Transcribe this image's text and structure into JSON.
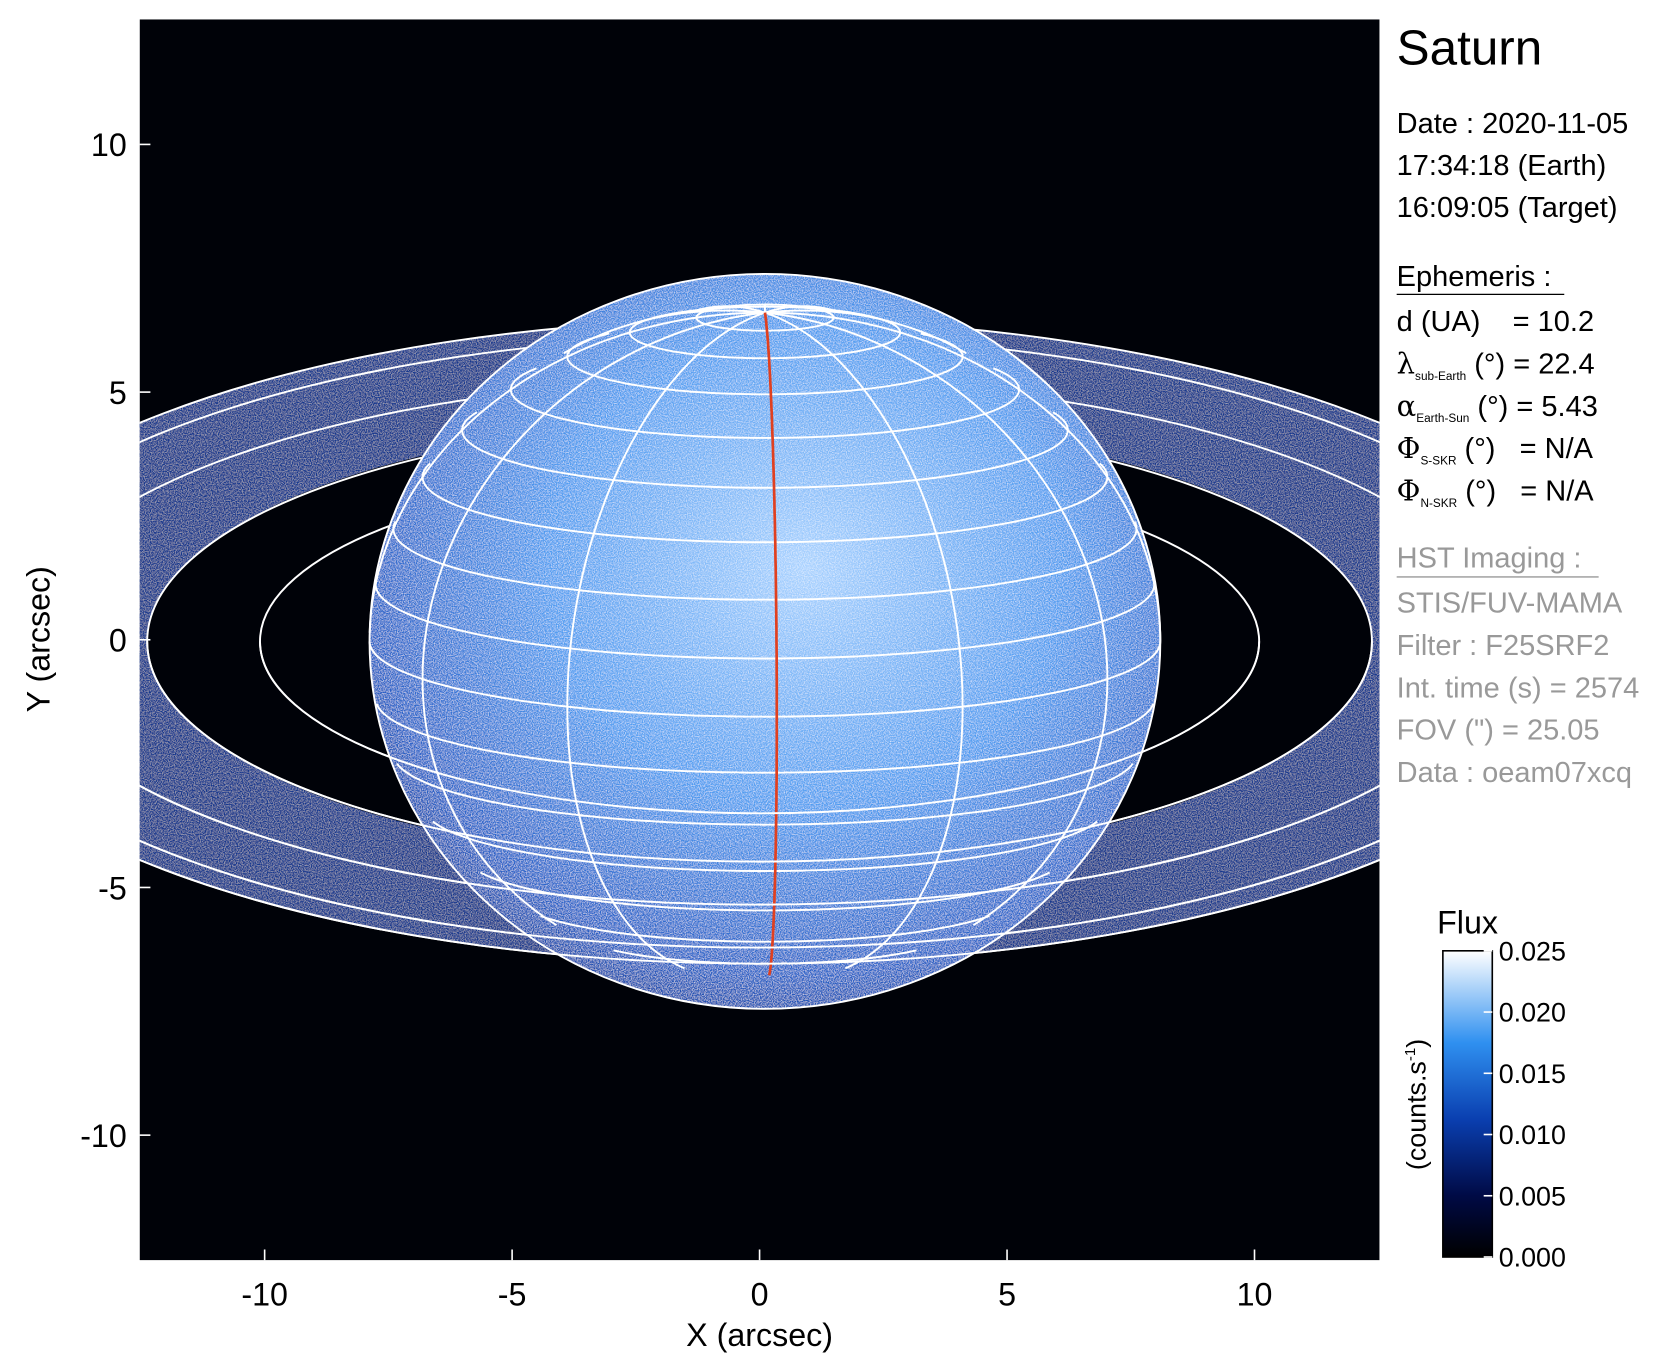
{
  "chart_data": {
    "type": "image",
    "title": "Saturn",
    "xlabel": "X (arcsec)",
    "ylabel": "Y (arcsec)",
    "xlim": [
      -12.525,
      12.525
    ],
    "ylim": [
      -12.525,
      12.525
    ],
    "xticks": [
      -10,
      -5,
      0,
      5,
      10
    ],
    "yticks": [
      -10,
      -5,
      0,
      5,
      10
    ],
    "colorbar": {
      "label": "Flux",
      "unit": "(counts.s",
      "unit_sup": "-1",
      "unit_end": ")",
      "lim": [
        0,
        0.025
      ],
      "ticks": [
        {
          "value": 0,
          "label": "0.000"
        },
        {
          "value": 0.005,
          "label": "0.005"
        },
        {
          "value": 0.01,
          "label": "0.010"
        },
        {
          "value": 0.015,
          "label": "0.015"
        },
        {
          "value": 0.02,
          "label": "0.020"
        },
        {
          "value": 0.025,
          "label": "0.025"
        }
      ]
    },
    "info": {
      "date": [
        "Date : 2020-11-05",
        "17:34:18 (Earth)",
        "16:09:05 (Target)"
      ],
      "ephemeris_title": "Ephemeris :",
      "ephemeris": [
        {
          "symbol": "",
          "subscript": "",
          "text": "d (UA)    = 10.2"
        },
        {
          "symbol": "λ",
          "subscript": "sub-Earth",
          "text": " (°) = 22.4"
        },
        {
          "symbol": "α",
          "subscript": "Earth-Sun",
          "text": " (°) = 5.43"
        },
        {
          "symbol": "Φ",
          "subscript": "S-SKR",
          "text": " (°)   = N/A"
        },
        {
          "symbol": "Φ",
          "subscript": "N-SKR",
          "text": " (°)   = N/A"
        }
      ],
      "imaging_title": "HST Imaging :",
      "imaging": [
        "STIS/FUV-MAMA",
        "Filter : F25SRF2",
        "Int. time (s) = 2574",
        "FOV (\") = 25.05",
        "Data : oeam07xcq"
      ]
    }
  }
}
